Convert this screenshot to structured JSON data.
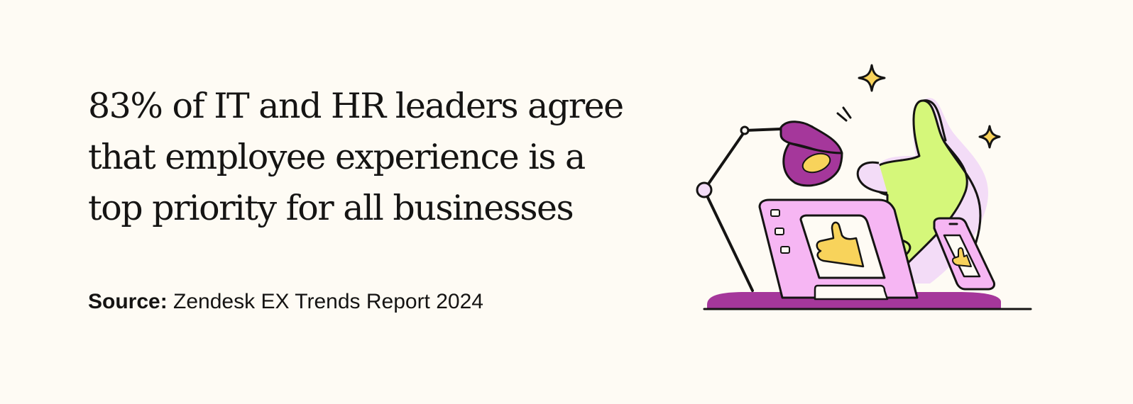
{
  "headline": {
    "lines": [
      "83% of IT and HR leaders agree",
      "that employee experience is a",
      "top priority for all businesses"
    ]
  },
  "source": {
    "label": "Source:",
    "text": "Zendesk EX Trends Report 2024"
  },
  "illustration": {
    "icons": [
      "desk-lamp-icon",
      "laptop-icon",
      "phone-icon",
      "thumbs-up-icon",
      "sparkle-icon"
    ],
    "colors": {
      "purple": "#a5379b",
      "pink": "#f6b6f3",
      "lime": "#d5f77a",
      "lavender": "#f3dcf7",
      "yellow": "#f8d35b",
      "ink": "#151413"
    }
  }
}
